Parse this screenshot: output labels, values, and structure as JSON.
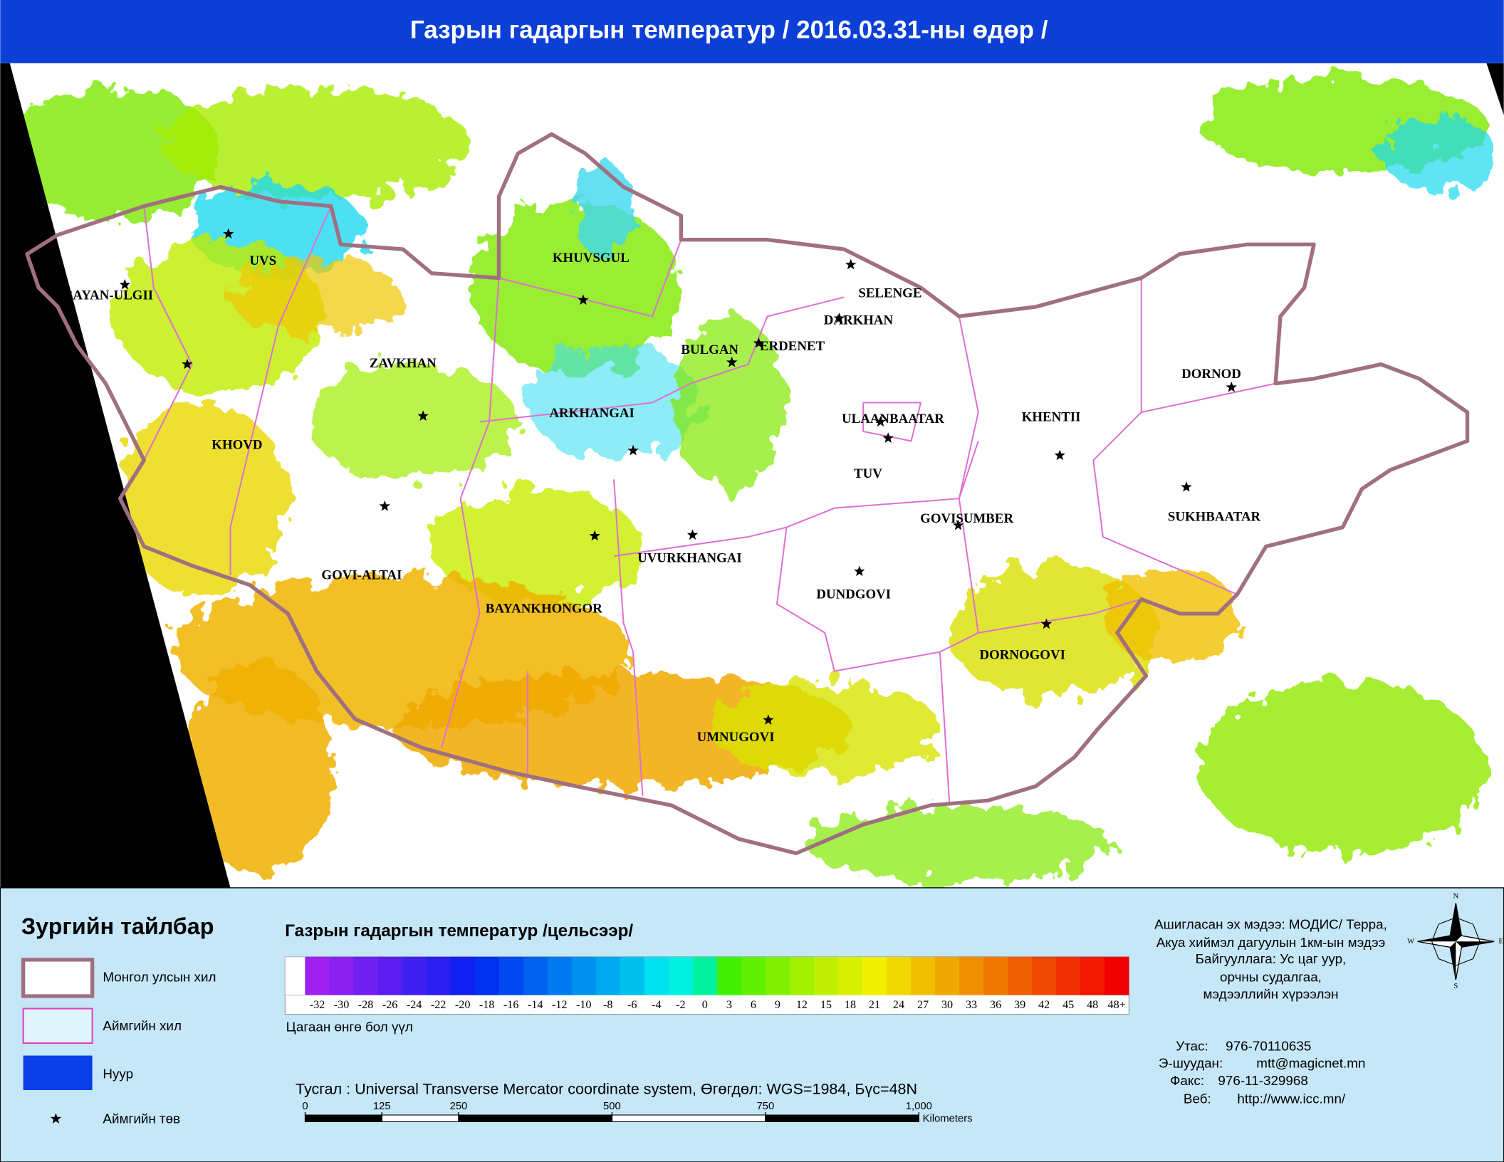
{
  "header": {
    "title": "Газрын гадаргын температур / 2016.03.31-ны өдөр /"
  },
  "map": {
    "provinces": [
      "UVS",
      "BAYAN-ULGII",
      "KHUVSGUL",
      "ZAVKHAN",
      "KHOVD",
      "ARKHANGAI",
      "BULGAN",
      "ERDENET",
      "SELENGE",
      "DARKHAN",
      "ULAANBAATAR",
      "TUV",
      "KHENTII",
      "DORNOD",
      "SUKHBAATAR",
      "GOVISUMBER",
      "DUNDGOVI",
      "DORNOGOVI",
      "UMNUGOVI",
      "UVURKHANGAI",
      "BAYANKHONGOR",
      "GOVI-ALTAI"
    ]
  },
  "legend": {
    "title": "Зургийн тайлбар",
    "items": [
      "Монгол улсын хил",
      "Аймгийн хил",
      "Нуур",
      "Аймгийн төв"
    ]
  },
  "colorbar": {
    "title": "Газрын гадаргын температур /цельсээр/",
    "labels": [
      "-32",
      "-30",
      "-28",
      "-26",
      "-24",
      "-22",
      "-20",
      "-18",
      "-16",
      "-14",
      "-12",
      "-10",
      "-8",
      "-6",
      "-4",
      "-2",
      "0",
      "3",
      "6",
      "9",
      "12",
      "15",
      "18",
      "21",
      "24",
      "27",
      "30",
      "33",
      "36",
      "39",
      "42",
      "45",
      "48",
      "48+"
    ],
    "colors": [
      "#a020f0",
      "#8a1ff0",
      "#7020f0",
      "#5a1ef0",
      "#4020f0",
      "#2a1ff0",
      "#1020f0",
      "#0030f0",
      "#0048f0",
      "#0060f0",
      "#0078f0",
      "#0090f0",
      "#00a8f0",
      "#00c0f0",
      "#00e0f0",
      "#00f0e0",
      "#00f0a0",
      "#40f000",
      "#60f000",
      "#80f000",
      "#a0f000",
      "#c0f000",
      "#d8f000",
      "#f0f000",
      "#f0d800",
      "#f0c000",
      "#f0a800",
      "#f09000",
      "#f07800",
      "#f06000",
      "#f04800",
      "#f03000",
      "#f01800",
      "#f00000"
    ],
    "note": "Цагаан өнгө бол үүл"
  },
  "projection": "Тусгал : Universal Transverse Mercator coordinate system, Өгөгдөл: WGS=1984, Бүс=48N",
  "scale_bar": {
    "xlim": [
      0,
      1000
    ],
    "ticks": [
      0,
      125,
      250,
      500,
      750,
      {
        "value": 1000,
        "label": "1,000"
      }
    ],
    "unit": "Kilometers"
  },
  "source": [
    "Ашигласан эх мэдээ: МОДИС/ Терра,",
    "Акуа хиймэл дагуулын 1км-ын мэдээ",
    "Байгууллага: Ус цаг уур,",
    "орчны судалгаа,",
    "мэдээллийн хүрээлэн"
  ],
  "contact": [
    {
      "label": "Утас:",
      "value": "976-70110635"
    },
    {
      "label": "Э-шуудан:",
      "value": "mtt@magicnet.mn"
    },
    {
      "label": "Факс:",
      "value": "976-11-329968"
    },
    {
      "label": "Веб:",
      "value": "http://www.icc.mn/"
    }
  ],
  "compass": {
    "n": "N",
    "e": "E",
    "s": "S",
    "w": "W"
  }
}
